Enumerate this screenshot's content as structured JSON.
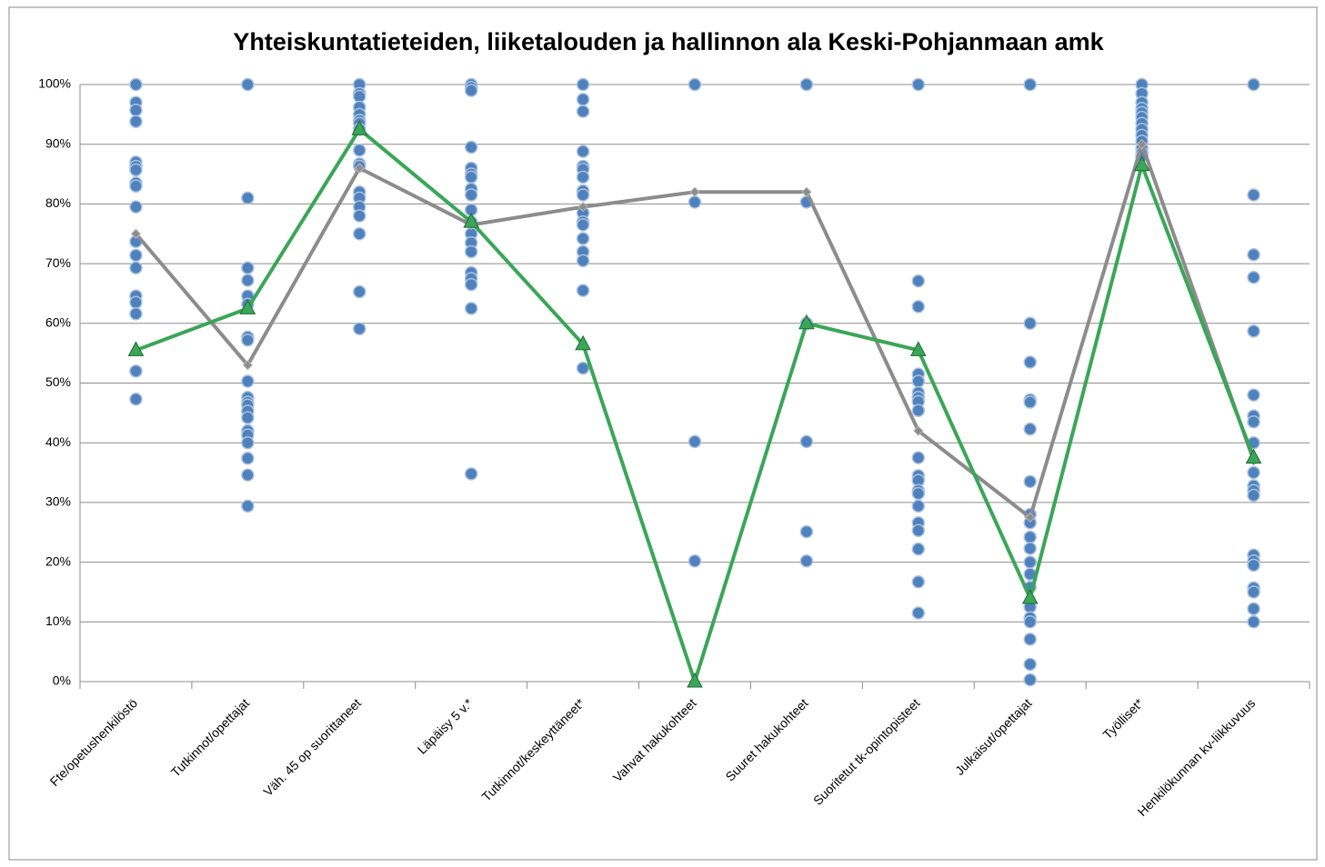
{
  "chart_data": {
    "type": "line",
    "title": "Yhteiskuntatieteiden, liiketalouden ja hallinnon ala Keski-Pohjanmaan amk",
    "categories": [
      "Fte/opetushenkilöstö",
      "Tutkinnot/opettajat",
      "Väh. 45 op suorittaneet",
      "Läpäisy 5 v.*",
      "Tutkinnot/keskeyttäneet*",
      "Vahvat hakukohteet",
      "Suuret hakukohteet",
      "Suoritetut tk-opintopisteet",
      "Julkaisut/opettajat",
      "Työlliset*",
      "Henkilökunnan kv-liikkuvuus"
    ],
    "dots_color": "#4f81bd",
    "dots": [
      [
        100,
        97,
        95.7,
        93.8,
        87,
        86.3,
        85.7,
        83.5,
        83,
        79.5,
        73.7,
        71.4,
        69.3,
        64.6,
        63.5,
        61.6,
        52,
        52,
        47.3
      ],
      [
        100,
        81,
        69.3,
        67.2,
        64.6,
        63.2,
        57.7,
        57.2,
        50.3,
        47.6,
        46.8,
        46.3,
        45.3,
        44.2,
        42,
        41.3,
        40,
        37.4,
        34.6,
        29.4
      ],
      [
        100,
        98.5,
        98,
        96.2,
        95,
        94,
        93.5,
        92.5,
        89,
        86.7,
        86.3,
        82,
        81,
        79.5,
        78,
        75,
        65.3,
        59.1
      ],
      [
        100,
        99.5,
        99,
        89.5,
        86,
        85,
        84.5,
        82.5,
        81.5,
        79,
        77,
        75,
        73.5,
        72,
        68.5,
        67.5,
        66.5,
        62.5,
        34.8
      ],
      [
        100,
        97.5,
        95.5,
        88.8,
        86.3,
        85.8,
        84.5,
        82.2,
        81.5,
        78.5,
        77,
        76.5,
        74.2,
        72,
        70.5,
        65.5,
        52.5
      ],
      [
        100,
        80.3,
        40.2,
        20.2
      ],
      [
        100,
        80.3,
        60,
        40.2,
        25.1,
        20.2
      ],
      [
        100,
        67.1,
        62.8,
        51.5,
        50.3,
        48.4,
        47.6,
        46.9,
        45.4,
        37.5,
        34.5,
        33.7,
        32,
        31.5,
        29.4,
        26.6,
        25.3,
        22.2,
        16.7,
        11.5
      ],
      [
        100,
        60,
        53.5,
        47.2,
        46.8,
        42.3,
        33.5,
        28,
        26.6,
        24.2,
        22.3,
        20,
        18,
        15.8,
        12.5,
        10.7,
        10,
        7.1,
        2.9,
        0.3
      ],
      [
        100,
        98.5,
        97,
        96,
        95.3,
        94.5,
        93.5,
        92.5,
        91.5,
        90.5,
        89.3,
        88.5,
        88
      ],
      [
        100,
        81.5,
        71.5,
        67.7,
        58.7,
        48,
        44.5,
        43.5,
        40,
        35,
        32.8,
        32,
        31.2,
        21.2,
        20.2,
        19.5,
        15.7,
        15,
        12.2,
        10
      ]
    ],
    "series": [
      {
        "color": "#8c8c8c",
        "marker": "diamond",
        "values": [
          75,
          53,
          86,
          76.5,
          79.5,
          82,
          82,
          42,
          27.5,
          90,
          37
        ]
      },
      {
        "color": "#3aa657",
        "marker": "triangle",
        "values": [
          55.5,
          62.5,
          92.5,
          77,
          56.5,
          0,
          60,
          55.5,
          14,
          86.5,
          37.5
        ]
      }
    ],
    "ylim": [
      0,
      100
    ],
    "yticks": [
      {
        "value": 0,
        "label": "0%"
      },
      {
        "value": 10,
        "label": "10%"
      },
      {
        "value": 20,
        "label": "20%"
      },
      {
        "value": 30,
        "label": "30%"
      },
      {
        "value": 40,
        "label": "40%"
      },
      {
        "value": 50,
        "label": "50%"
      },
      {
        "value": 60,
        "label": "60%"
      },
      {
        "value": 70,
        "label": "70%"
      },
      {
        "value": 80,
        "label": "80%"
      },
      {
        "value": 90,
        "label": "90%"
      },
      {
        "value": 100,
        "label": "100%"
      }
    ],
    "grid": true
  }
}
